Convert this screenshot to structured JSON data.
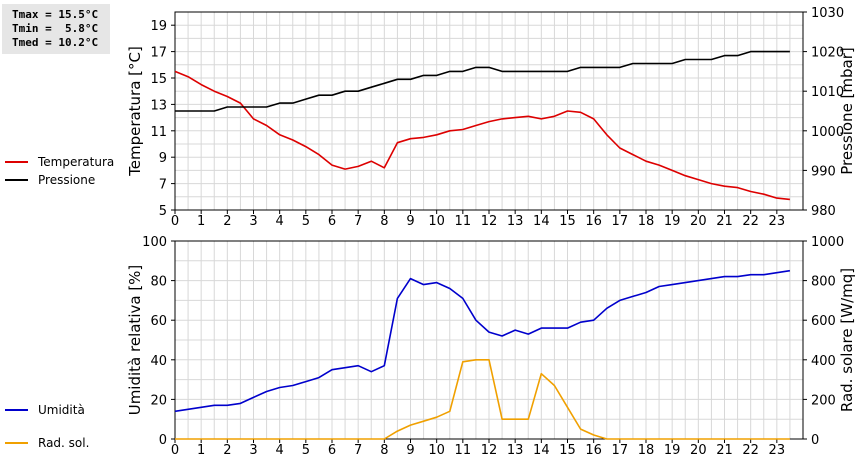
{
  "stats": [
    "Tmax = 15.5°C",
    "Tmin =  5.8°C",
    "Tmed = 10.2°C"
  ],
  "chart_data": [
    {
      "type": "line",
      "x_ticks": [
        "0",
        "1",
        "2",
        "3",
        "4",
        "5",
        "6",
        "7",
        "8",
        "9",
        "10",
        "11",
        "12",
        "13",
        "14",
        "15",
        "16",
        "17",
        "18",
        "19",
        "20",
        "21",
        "22",
        "23"
      ],
      "xlim": [
        0,
        24
      ],
      "grid": true,
      "legend_position": "left",
      "left_axis": {
        "label": "Temperatura [°C]",
        "ylim": [
          5,
          20
        ],
        "ticks": [
          "5",
          "7",
          "9",
          "11",
          "13",
          "15",
          "17",
          "19"
        ]
      },
      "right_axis": {
        "label": "Pressione [mbar]",
        "ylim": [
          980,
          1030
        ],
        "ticks": [
          "980",
          "990",
          "1000",
          "1010",
          "1020",
          "1030"
        ]
      },
      "series": [
        {
          "name": "Temperatura",
          "axis": "left",
          "color": "#dd0000",
          "x": [
            0,
            0.5,
            1,
            1.5,
            2,
            2.5,
            3,
            3.5,
            4,
            4.5,
            5,
            5.5,
            6,
            6.5,
            7,
            7.5,
            8,
            8.5,
            9,
            9.5,
            10,
            10.5,
            11,
            11.5,
            12,
            12.5,
            13,
            13.5,
            14,
            14.5,
            15,
            15.5,
            16,
            16.5,
            17,
            17.5,
            18,
            18.5,
            19,
            19.5,
            20,
            20.5,
            21,
            21.5,
            22,
            22.5,
            23,
            23.5
          ],
          "y": [
            15.5,
            15.1,
            14.5,
            14.0,
            13.6,
            13.1,
            11.9,
            11.4,
            10.7,
            10.3,
            9.8,
            9.2,
            8.4,
            8.1,
            8.3,
            8.7,
            8.2,
            10.1,
            10.4,
            10.5,
            10.7,
            11.0,
            11.1,
            11.4,
            11.7,
            11.9,
            12.0,
            12.1,
            11.9,
            12.1,
            12.5,
            12.4,
            11.9,
            10.7,
            9.7,
            9.2,
            8.7,
            8.4,
            8.0,
            7.6,
            7.3,
            7.0,
            6.8,
            6.7,
            6.4,
            6.2,
            5.9,
            5.8
          ]
        },
        {
          "name": "Pressione",
          "axis": "right",
          "color": "#000000",
          "x": [
            0,
            0.5,
            1,
            1.5,
            2,
            2.5,
            3,
            3.5,
            4,
            4.5,
            5,
            5.5,
            6,
            6.5,
            7,
            7.5,
            8,
            8.5,
            9,
            9.5,
            10,
            10.5,
            11,
            11.5,
            12,
            12.5,
            13,
            13.5,
            14,
            14.5,
            15,
            15.5,
            16,
            16.5,
            17,
            17.5,
            18,
            18.5,
            19,
            19.5,
            20,
            20.5,
            21,
            21.5,
            22,
            22.5,
            23,
            23.5
          ],
          "y": [
            1005,
            1005,
            1005,
            1005,
            1006,
            1006,
            1006,
            1006,
            1007,
            1007,
            1008,
            1009,
            1009,
            1010,
            1010,
            1011,
            1012,
            1013,
            1013,
            1014,
            1014,
            1015,
            1015,
            1016,
            1016,
            1015,
            1015,
            1015,
            1015,
            1015,
            1015,
            1016,
            1016,
            1016,
            1016,
            1017,
            1017,
            1017,
            1017,
            1018,
            1018,
            1018,
            1019,
            1019,
            1020,
            1020,
            1020,
            1020
          ]
        }
      ]
    },
    {
      "type": "line",
      "x_ticks": [
        "0",
        "1",
        "2",
        "3",
        "4",
        "5",
        "6",
        "7",
        "8",
        "9",
        "10",
        "11",
        "12",
        "13",
        "14",
        "15",
        "16",
        "17",
        "18",
        "19",
        "20",
        "21",
        "22",
        "23"
      ],
      "xlim": [
        0,
        24
      ],
      "grid": true,
      "legend_position": "left",
      "left_axis": {
        "label": "Umidità relativa [%]",
        "ylim": [
          0,
          100
        ],
        "ticks": [
          "0",
          "20",
          "40",
          "60",
          "80",
          "100"
        ]
      },
      "right_axis": {
        "label": "Rad. solare [W/mq]",
        "ylim": [
          0,
          1000
        ],
        "ticks": [
          "0",
          "200",
          "400",
          "600",
          "800",
          "1000"
        ]
      },
      "series": [
        {
          "name": "Umidità",
          "axis": "left",
          "color": "#0000cc",
          "x": [
            0,
            0.5,
            1,
            1.5,
            2,
            2.5,
            3,
            3.5,
            4,
            4.5,
            5,
            5.5,
            6,
            6.5,
            7,
            7.5,
            8,
            8.5,
            9,
            9.5,
            10,
            10.5,
            11,
            11.5,
            12,
            12.5,
            13,
            13.5,
            14,
            14.5,
            15,
            15.5,
            16,
            16.5,
            17,
            17.5,
            18,
            18.5,
            19,
            19.5,
            20,
            20.5,
            21,
            21.5,
            22,
            22.5,
            23,
            23.5
          ],
          "y": [
            14,
            15,
            16,
            17,
            17,
            18,
            21,
            24,
            26,
            27,
            29,
            31,
            35,
            36,
            37,
            34,
            37,
            71,
            81,
            78,
            79,
            76,
            71,
            60,
            54,
            52,
            55,
            53,
            56,
            56,
            56,
            59,
            60,
            66,
            70,
            72,
            74,
            77,
            78,
            79,
            80,
            81,
            82,
            82,
            83,
            83,
            84,
            85
          ]
        },
        {
          "name": "Rad. sol.",
          "axis": "right",
          "color": "#f0a000",
          "x": [
            0,
            0.5,
            1,
            1.5,
            2,
            2.5,
            3,
            3.5,
            4,
            4.5,
            5,
            5.5,
            6,
            6.5,
            7,
            7.5,
            8,
            8.5,
            9,
            9.5,
            10,
            10.5,
            11,
            11.5,
            12,
            12.5,
            13,
            13.5,
            14,
            14.5,
            15,
            15.5,
            16,
            16.5,
            17,
            17.5,
            18,
            18.5,
            19,
            19.5,
            20,
            20.5,
            21,
            21.5,
            22,
            22.5,
            23,
            23.5
          ],
          "y": [
            0,
            0,
            0,
            0,
            0,
            0,
            0,
            0,
            0,
            0,
            0,
            0,
            0,
            0,
            0,
            0,
            0,
            40,
            70,
            90,
            110,
            140,
            390,
            400,
            400,
            100,
            100,
            100,
            330,
            270,
            160,
            50,
            20,
            0,
            0,
            0,
            0,
            0,
            0,
            0,
            0,
            0,
            0,
            0,
            0,
            0,
            0,
            0
          ]
        }
      ]
    }
  ]
}
